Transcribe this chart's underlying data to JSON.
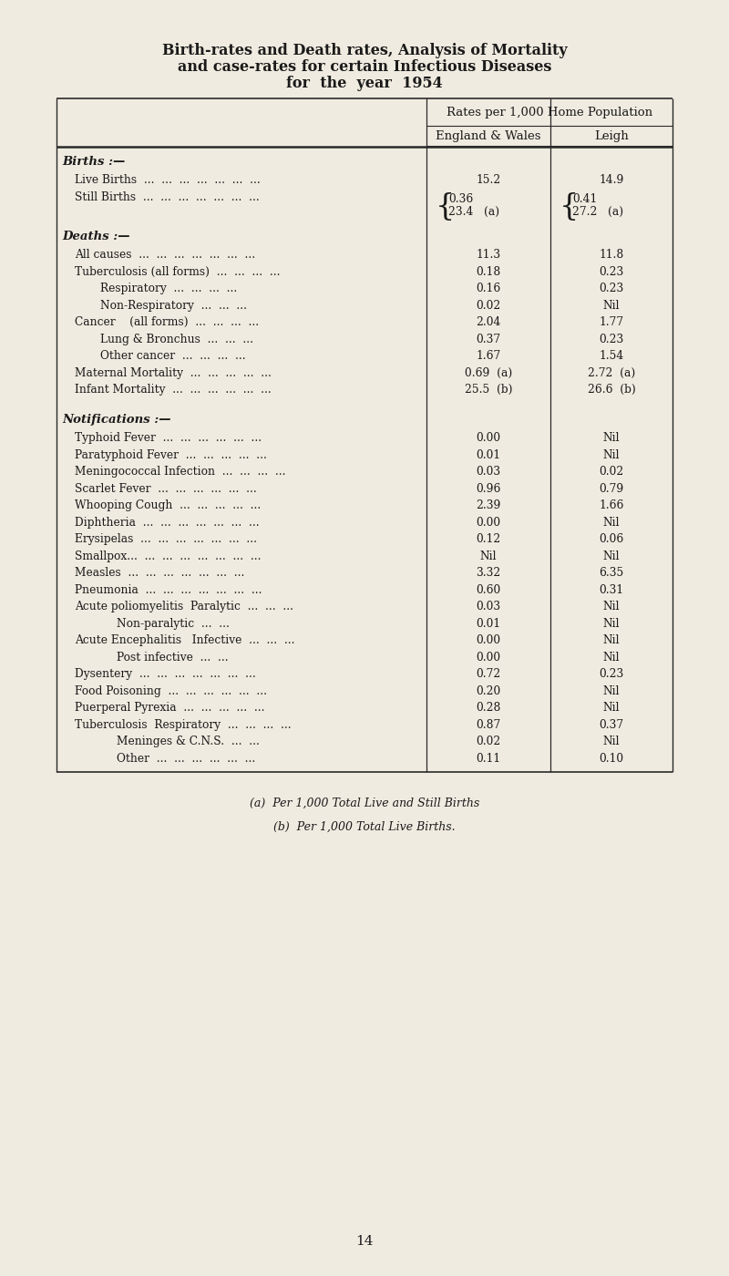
{
  "title_line1": "Birth-rates and Death rates, Analysis of Mortality",
  "title_line2": "and case-rates for certain Infectious Diseases",
  "title_line3": "for  the  year  1954",
  "bg_color": "#f0ebe0",
  "col_header_main": "Rates per 1,000 Home Population",
  "col_header1": "England & Wales",
  "col_header2": "Leigh",
  "footnote_a": "(a)  Per 1,000 Total Live and Still Births",
  "footnote_b": "(b)  Per 1,000 Total Live Births.",
  "page_number": "14",
  "rows": [
    {
      "label": "Births :—",
      "indent": 0,
      "bold": true,
      "val1": "",
      "val2": "",
      "type": "header"
    },
    {
      "label": "Live Births  ...  ...  ...  ...  ...  ...  ...",
      "indent": 1,
      "bold": false,
      "val1": "15.2",
      "val2": "14.9",
      "type": "data"
    },
    {
      "label": "Still Births  ...  ...  ...  ...  ...  ...  ...",
      "indent": 1,
      "bold": false,
      "val1": "",
      "val2": "",
      "type": "stillbirths"
    },
    {
      "label": "Deaths :—",
      "indent": 0,
      "bold": true,
      "val1": "",
      "val2": "",
      "type": "header"
    },
    {
      "label": "All causes  ...  ...  ...  ...  ...  ...  ...",
      "indent": 1,
      "bold": false,
      "val1": "11.3",
      "val2": "11.8",
      "type": "data"
    },
    {
      "label": "Tuberculosis (all forms)  ...  ...  ...  ...",
      "indent": 1,
      "bold": false,
      "val1": "0.18",
      "val2": "0.23",
      "type": "data"
    },
    {
      "label": "Respiratory  ...  ...  ...  ...",
      "indent": 2,
      "bold": false,
      "val1": "0.16",
      "val2": "0.23",
      "type": "data"
    },
    {
      "label": "Non-Respiratory  ...  ...  ...",
      "indent": 2,
      "bold": false,
      "val1": "0.02",
      "val2": "Nil",
      "type": "data"
    },
    {
      "label": "Cancer    (all forms)  ...  ...  ...  ...",
      "indent": 1,
      "bold": false,
      "val1": "2.04",
      "val2": "1.77",
      "type": "data"
    },
    {
      "label": "Lung & Bronchus  ...  ...  ...",
      "indent": 2,
      "bold": false,
      "val1": "0.37",
      "val2": "0.23",
      "type": "data"
    },
    {
      "label": "Other cancer  ...  ...  ...  ...",
      "indent": 2,
      "bold": false,
      "val1": "1.67",
      "val2": "1.54",
      "type": "data"
    },
    {
      "label": "Maternal Mortality  ...  ...  ...  ...  ...",
      "indent": 1,
      "bold": false,
      "val1": "0.69  (a)",
      "val2": "2.72  (a)",
      "type": "data"
    },
    {
      "label": "Infant Mortality  ...  ...  ...  ...  ...  ...",
      "indent": 1,
      "bold": false,
      "val1": "25.5  (b)",
      "val2": "26.6  (b)",
      "type": "data"
    },
    {
      "label": "",
      "indent": 0,
      "bold": false,
      "val1": "",
      "val2": "",
      "type": "spacer"
    },
    {
      "label": "Notifications :—",
      "indent": 0,
      "bold": true,
      "val1": "",
      "val2": "",
      "type": "header"
    },
    {
      "label": "Typhoid Fever  ...  ...  ...  ...  ...  ...",
      "indent": 1,
      "bold": false,
      "val1": "0.00",
      "val2": "Nil",
      "type": "data"
    },
    {
      "label": "Paratyphoid Fever  ...  ...  ...  ...  ...",
      "indent": 1,
      "bold": false,
      "val1": "0.01",
      "val2": "Nil",
      "type": "data"
    },
    {
      "label": "Meningococcal Infection  ...  ...  ...  ...",
      "indent": 1,
      "bold": false,
      "val1": "0.03",
      "val2": "0.02",
      "type": "data"
    },
    {
      "label": "Scarlet Fever  ...  ...  ...  ...  ...  ...",
      "indent": 1,
      "bold": false,
      "val1": "0.96",
      "val2": "0.79",
      "type": "data"
    },
    {
      "label": "Whooping Cough  ...  ...  ...  ...  ...",
      "indent": 1,
      "bold": false,
      "val1": "2.39",
      "val2": "1.66",
      "type": "data"
    },
    {
      "label": "Diphtheria  ...  ...  ...  ...  ...  ...  ...",
      "indent": 1,
      "bold": false,
      "val1": "0.00",
      "val2": "Nil",
      "type": "data"
    },
    {
      "label": "Erysipelas  ...  ...  ...  ...  ...  ...  ...",
      "indent": 1,
      "bold": false,
      "val1": "0.12",
      "val2": "0.06",
      "type": "data"
    },
    {
      "label": "Smallpox...  ...  ...  ...  ...  ...  ...  ...",
      "indent": 1,
      "bold": false,
      "val1": "Nil",
      "val2": "Nil",
      "type": "data"
    },
    {
      "label": "Measles  ...  ...  ...  ...  ...  ...  ...",
      "indent": 1,
      "bold": false,
      "val1": "3.32",
      "val2": "6.35",
      "type": "data"
    },
    {
      "label": "Pneumonia  ...  ...  ...  ...  ...  ...  ...",
      "indent": 1,
      "bold": false,
      "val1": "0.60",
      "val2": "0.31",
      "type": "data"
    },
    {
      "label": "Acute poliomyelitis  Paralytic  ...  ...  ...",
      "indent": 1,
      "bold": false,
      "val1": "0.03",
      "val2": "Nil",
      "type": "data"
    },
    {
      "label": "Non-paralytic  ...  ...",
      "indent": 3,
      "bold": false,
      "val1": "0.01",
      "val2": "Nil",
      "type": "data"
    },
    {
      "label": "Acute Encephalitis   Infective  ...  ...  ...",
      "indent": 1,
      "bold": false,
      "val1": "0.00",
      "val2": "Nil",
      "type": "data"
    },
    {
      "label": "Post infective  ...  ...",
      "indent": 3,
      "bold": false,
      "val1": "0.00",
      "val2": "Nil",
      "type": "data"
    },
    {
      "label": "Dysentery  ...  ...  ...  ...  ...  ...  ...",
      "indent": 1,
      "bold": false,
      "val1": "0.72",
      "val2": "0.23",
      "type": "data"
    },
    {
      "label": "Food Poisoning  ...  ...  ...  ...  ...  ...",
      "indent": 1,
      "bold": false,
      "val1": "0.20",
      "val2": "Nil",
      "type": "data"
    },
    {
      "label": "Puerperal Pyrexia  ...  ...  ...  ...  ...",
      "indent": 1,
      "bold": false,
      "val1": "0.28",
      "val2": "Nil",
      "type": "data"
    },
    {
      "label": "Tuberculosis  Respiratory  ...  ...  ...  ...",
      "indent": 1,
      "bold": false,
      "val1": "0.87",
      "val2": "0.37",
      "type": "data"
    },
    {
      "label": "Meninges & C.N.S.  ...  ...",
      "indent": 3,
      "bold": false,
      "val1": "0.02",
      "val2": "Nil",
      "type": "data"
    },
    {
      "label": "Other  ...  ...  ...  ...  ...  ...",
      "indent": 3,
      "bold": false,
      "val1": "0.11",
      "val2": "0.10",
      "type": "data"
    }
  ]
}
